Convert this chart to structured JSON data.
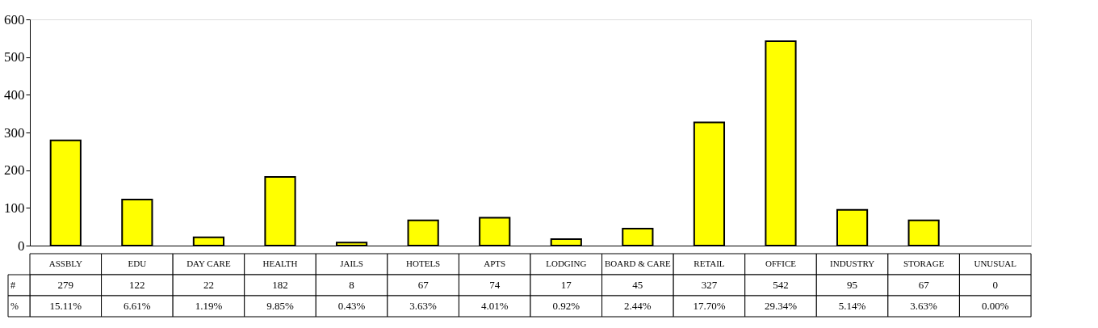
{
  "chart_data": {
    "type": "bar",
    "categories": [
      "ASSBLY",
      "EDU",
      "DAY CARE",
      "HEALTH",
      "JAILS",
      "HOTELS",
      "APTS",
      "LODGING",
      "BOARD & CARE",
      "RETAIL",
      "OFFICE",
      "INDUSTRY",
      "STORAGE",
      "UNUSUAL"
    ],
    "values": [
      279,
      122,
      22,
      182,
      8,
      67,
      74,
      17,
      45,
      327,
      542,
      95,
      67,
      0
    ],
    "color": "#ffff00",
    "ylim": [
      0,
      600
    ],
    "yticks": [
      0,
      100,
      200,
      300,
      400,
      500,
      600
    ],
    "grid": false,
    "data_labels": true,
    "annotations": [
      "#",
      "%",
      "15.11%",
      "6.61%",
      "1.19%",
      "9.85%",
      "0.43%",
      "3.63%",
      "4.01%",
      "0.92%",
      "2.44%",
      "17.70%",
      "29.34%",
      "5.14%",
      "3.63%",
      "0.00%"
    ]
  }
}
